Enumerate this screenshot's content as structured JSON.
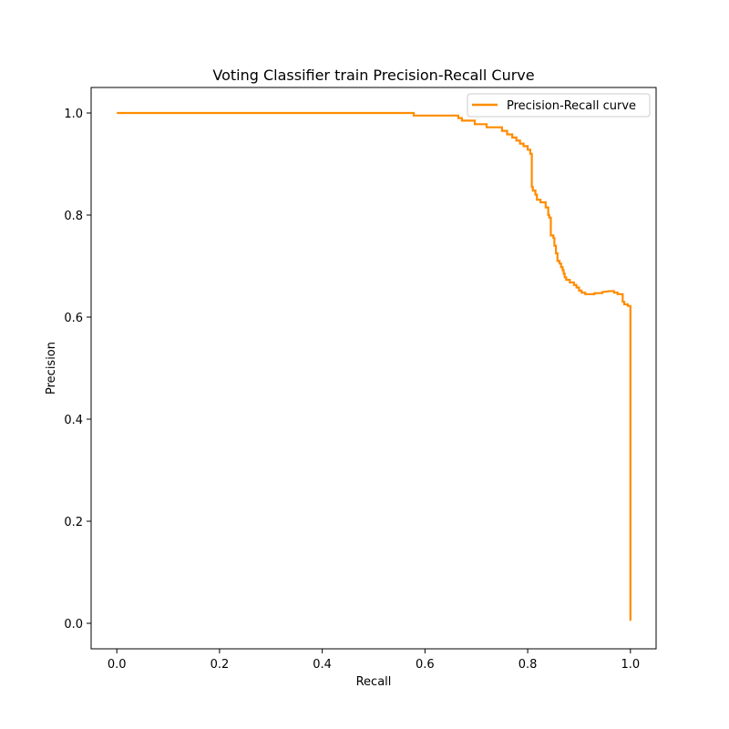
{
  "chart_data": {
    "type": "line",
    "title": "Voting Classifier train Precision-Recall Curve",
    "xlabel": "Recall",
    "ylabel": "Precision",
    "xlim": [
      -0.05,
      1.05
    ],
    "ylim": [
      -0.05,
      1.05
    ],
    "xticks": [
      "0.0",
      "0.2",
      "0.4",
      "0.6",
      "0.8",
      "1.0"
    ],
    "yticks": [
      "0.0",
      "0.2",
      "0.4",
      "0.6",
      "0.8",
      "1.0"
    ],
    "grid": false,
    "legend_position": "top-right",
    "series": [
      {
        "name": "Precision-Recall curve",
        "color": "#ff8c00",
        "x": [
          0.0,
          0.578,
          0.578,
          0.665,
          0.665,
          0.672,
          0.672,
          0.697,
          0.697,
          0.72,
          0.72,
          0.75,
          0.75,
          0.76,
          0.76,
          0.77,
          0.77,
          0.778,
          0.778,
          0.785,
          0.785,
          0.792,
          0.792,
          0.8,
          0.8,
          0.805,
          0.805,
          0.808,
          0.808,
          0.81,
          0.81,
          0.815,
          0.815,
          0.818,
          0.818,
          0.825,
          0.825,
          0.835,
          0.835,
          0.84,
          0.84,
          0.842,
          0.842,
          0.845,
          0.845,
          0.85,
          0.85,
          0.852,
          0.852,
          0.855,
          0.855,
          0.858,
          0.858,
          0.862,
          0.862,
          0.865,
          0.865,
          0.868,
          0.868,
          0.87,
          0.87,
          0.872,
          0.872,
          0.875,
          0.875,
          0.882,
          0.882,
          0.89,
          0.89,
          0.895,
          0.895,
          0.9,
          0.9,
          0.905,
          0.905,
          0.912,
          0.912,
          0.93,
          0.93,
          0.945,
          0.945,
          0.96,
          0.968,
          0.968,
          0.975,
          0.975,
          0.985,
          0.985,
          0.988,
          0.988,
          0.995,
          0.995,
          1.0,
          1.0
        ],
        "y": [
          1.0,
          1.0,
          0.995,
          0.995,
          0.99,
          0.99,
          0.985,
          0.985,
          0.978,
          0.978,
          0.972,
          0.972,
          0.965,
          0.965,
          0.958,
          0.958,
          0.952,
          0.952,
          0.946,
          0.946,
          0.94,
          0.94,
          0.935,
          0.935,
          0.928,
          0.928,
          0.92,
          0.92,
          0.855,
          0.855,
          0.848,
          0.848,
          0.84,
          0.84,
          0.83,
          0.83,
          0.825,
          0.825,
          0.815,
          0.815,
          0.8,
          0.8,
          0.795,
          0.795,
          0.76,
          0.76,
          0.755,
          0.755,
          0.74,
          0.74,
          0.725,
          0.725,
          0.71,
          0.71,
          0.705,
          0.705,
          0.698,
          0.698,
          0.692,
          0.692,
          0.685,
          0.685,
          0.678,
          0.678,
          0.673,
          0.673,
          0.668,
          0.668,
          0.663,
          0.663,
          0.658,
          0.658,
          0.652,
          0.652,
          0.648,
          0.648,
          0.645,
          0.645,
          0.647,
          0.647,
          0.649,
          0.651,
          0.651,
          0.648,
          0.648,
          0.645,
          0.645,
          0.63,
          0.63,
          0.625,
          0.625,
          0.622,
          0.622,
          0.005
        ]
      }
    ]
  }
}
